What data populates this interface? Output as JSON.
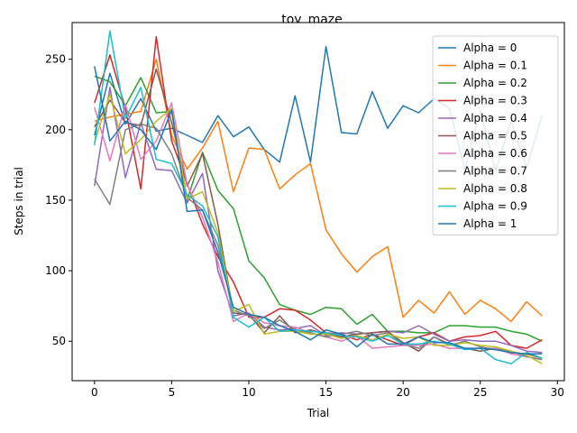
{
  "chart_data": {
    "type": "line",
    "title": "toy_maze",
    "xlabel": "Trial",
    "ylabel": "Steps in trial",
    "xlim": [
      -1.45,
      30.45
    ],
    "ylim": [
      22,
      276
    ],
    "xticks": [
      0,
      5,
      10,
      15,
      20,
      25,
      30
    ],
    "yticks": [
      50,
      100,
      150,
      200,
      250
    ],
    "grid": false,
    "legend_position": "upper right",
    "x": [
      0,
      1,
      2,
      3,
      4,
      5,
      6,
      7,
      8,
      9,
      10,
      11,
      12,
      13,
      14,
      15,
      16,
      17,
      18,
      19,
      20,
      21,
      22,
      23,
      24,
      25,
      26,
      27,
      28,
      29
    ],
    "series": [
      {
        "name": "Alpha = 0",
        "color": "#1f77b4",
        "values": [
          196,
          240,
          204,
          222,
          199,
          201,
          196,
          191,
          210,
          195,
          202,
          186,
          177,
          224,
          177,
          259,
          198,
          197,
          227,
          201,
          217,
          212,
          222,
          215,
          172,
          213,
          171,
          206,
          173,
          210
        ]
      },
      {
        "name": "Alpha = 0.1",
        "color": "#ff7f0e",
        "values": [
          206,
          209,
          211,
          213,
          250,
          196,
          172,
          187,
          206,
          156,
          187,
          186,
          158,
          168,
          176,
          129,
          112,
          99,
          110,
          117,
          67,
          79,
          70,
          85,
          69,
          79,
          73,
          64,
          78,
          68
        ]
      },
      {
        "name": "Alpha = 0.2",
        "color": "#2ca02c",
        "values": [
          238,
          234,
          217,
          237,
          212,
          213,
          150,
          184,
          157,
          144,
          107,
          95,
          76,
          72,
          69,
          74,
          73,
          62,
          69,
          57,
          57,
          56,
          56,
          61,
          61,
          60,
          60,
          57,
          55,
          50
        ]
      },
      {
        "name": "Alpha = 0.3",
        "color": "#d62728",
        "values": [
          219,
          253,
          215,
          158,
          266,
          192,
          162,
          133,
          110,
          92,
          67,
          67,
          73,
          72,
          65,
          56,
          55,
          51,
          55,
          51,
          47,
          53,
          56,
          50,
          53,
          54,
          57,
          47,
          45,
          51
        ]
      },
      {
        "name": "Alpha = 0.4",
        "color": "#9467bd",
        "values": [
          160,
          230,
          166,
          205,
          172,
          171,
          148,
          169,
          100,
          68,
          70,
          60,
          58,
          59,
          61,
          54,
          56,
          55,
          56,
          57,
          56,
          61,
          55,
          50,
          51,
          50,
          50,
          47,
          43,
          42
        ]
      },
      {
        "name": "Alpha = 0.5",
        "color": "#8c564b",
        "values": [
          202,
          221,
          205,
          203,
          243,
          205,
          160,
          183,
          133,
          70,
          69,
          56,
          68,
          56,
          58,
          55,
          53,
          55,
          56,
          57,
          49,
          43,
          53,
          48,
          45,
          43,
          45,
          42,
          41,
          38
        ]
      },
      {
        "name": "Alpha = 0.6",
        "color": "#e377c2",
        "values": [
          216,
          178,
          218,
          179,
          192,
          219,
          161,
          138,
          106,
          64,
          70,
          63,
          61,
          60,
          56,
          53,
          50,
          54,
          45,
          46,
          47,
          47,
          48,
          45,
          45,
          45,
          45,
          41,
          39,
          37
        ]
      },
      {
        "name": "Alpha = 0.7",
        "color": "#7f7f7f",
        "values": [
          165,
          147,
          200,
          204,
          201,
          183,
          152,
          143,
          118,
          72,
          68,
          59,
          65,
          58,
          56,
          53,
          55,
          57,
          54,
          56,
          48,
          45,
          53,
          47,
          50,
          46,
          44,
          43,
          39,
          37
        ]
      },
      {
        "name": "Alpha = 0.8",
        "color": "#bcbd22",
        "values": [
          191,
          225,
          183,
          193,
          206,
          215,
          151,
          156,
          127,
          71,
          76,
          55,
          57,
          57,
          55,
          55,
          52,
          54,
          51,
          55,
          52,
          53,
          47,
          47,
          49,
          47,
          46,
          43,
          40,
          34
        ]
      },
      {
        "name": "Alpha = 0.9",
        "color": "#17becf",
        "values": [
          189,
          270,
          208,
          230,
          179,
          176,
          154,
          146,
          124,
          67,
          60,
          67,
          57,
          58,
          57,
          56,
          54,
          53,
          50,
          54,
          48,
          48,
          50,
          48,
          44,
          45,
          37,
          34,
          42,
          38
        ]
      },
      {
        "name": "Alpha = 1",
        "color": "#1f77b4",
        "values": [
          245,
          192,
          206,
          200,
          186,
          214,
          142,
          143,
          113,
          74,
          69,
          67,
          61,
          57,
          51,
          58,
          55,
          46,
          55,
          48,
          48,
          53,
          49,
          49,
          45,
          45,
          44,
          42,
          41,
          41
        ]
      }
    ]
  }
}
